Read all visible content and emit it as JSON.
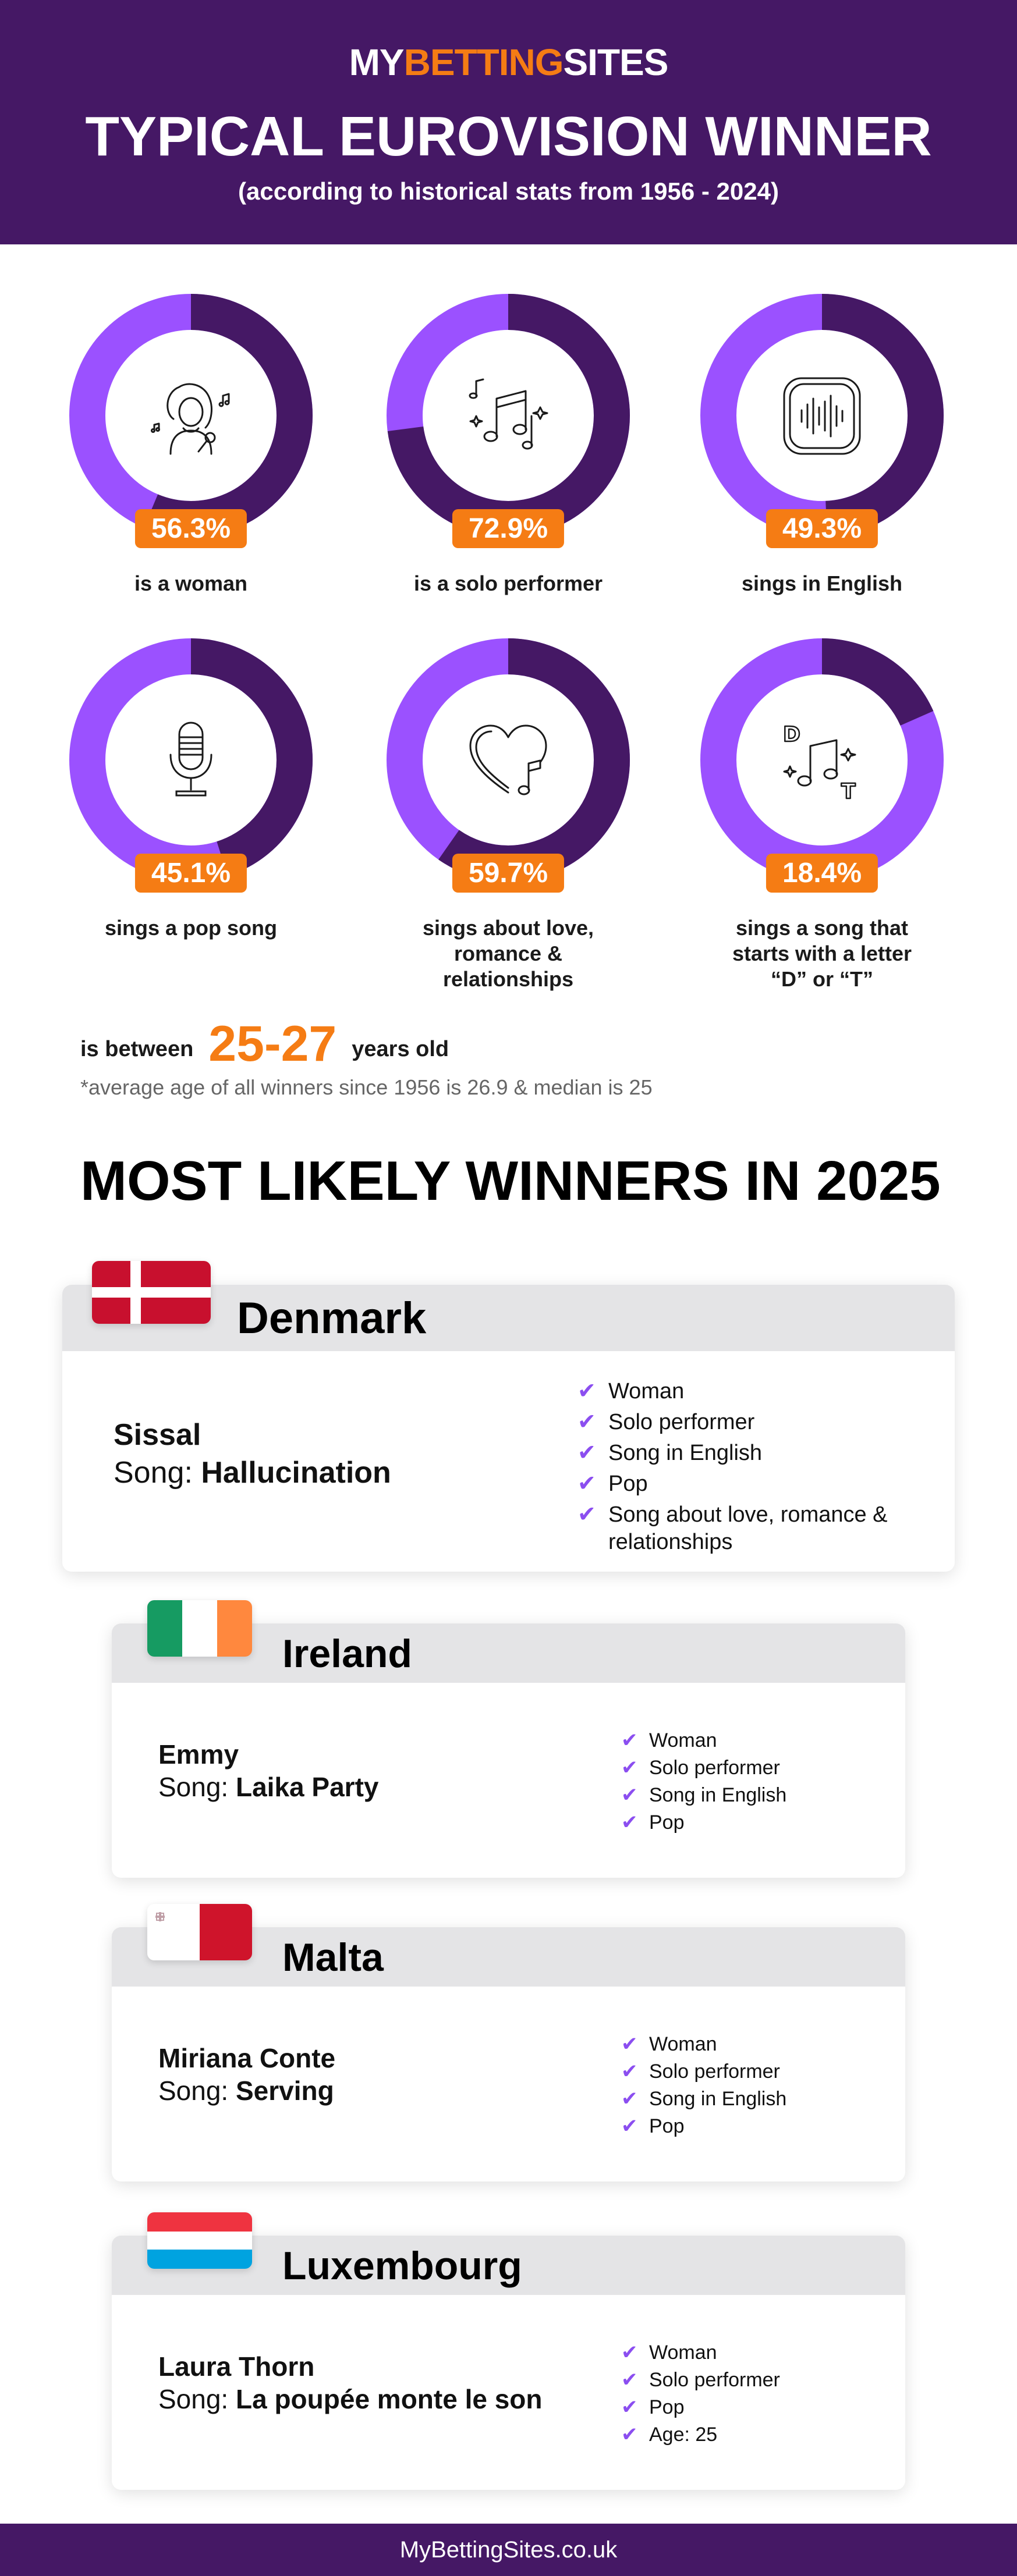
{
  "header": {
    "logo_part1": "MY",
    "logo_part2": "BETTING",
    "logo_part3": "SITES",
    "title": "TYPICAL EUROVISION WINNER",
    "subtitle": "(according to historical stats from 1956 - 2024)"
  },
  "colors": {
    "purple": "#451865",
    "light_purple": "#9b51ff",
    "orange": "#f57c14",
    "check": "#8b4ef0"
  },
  "stats": [
    {
      "value": 56.3,
      "pct_label": "56.3%",
      "label": "is a woman",
      "icon": "woman-singer-icon"
    },
    {
      "value": 72.9,
      "pct_label": "72.9%",
      "label": "is a solo performer",
      "icon": "music-notes-icon"
    },
    {
      "value": 49.3,
      "pct_label": "49.3%",
      "label": "sings in English",
      "icon": "sound-wave-icon"
    },
    {
      "value": 45.1,
      "pct_label": "45.1%",
      "label": "sings a pop song",
      "icon": "microphone-icon"
    },
    {
      "value": 59.7,
      "pct_label": "59.7%",
      "label": "sings about  love, romance & relationships",
      "icon": "heart-note-icon"
    },
    {
      "value": 18.4,
      "pct_label": "18.4%",
      "label": "sings a song that starts with a letter “D” or “T”",
      "icon": "letters-note-icon"
    }
  ],
  "age": {
    "prefix": "is between",
    "range": "25-27",
    "suffix": "years old",
    "note": "*average age of all winners since 1956 is 26.9 & median is 25"
  },
  "section_title": "MOST LIKELY WINNERS IN 2025",
  "winners": [
    {
      "country": "Denmark",
      "flag": "denmark-flag",
      "artist": "Sissal",
      "song_prefix": "Song: ",
      "song": "Hallucination",
      "traits": [
        "Woman",
        "Solo performer",
        "Song in English",
        "Pop",
        "Song about love, romance & relationships"
      ]
    },
    {
      "country": "Ireland",
      "flag": "ireland-flag",
      "artist": "Emmy",
      "song_prefix": "Song: ",
      "song": "Laika Party",
      "traits": [
        "Woman",
        "Solo performer",
        "Song in English",
        "Pop"
      ]
    },
    {
      "country": "Malta",
      "flag": "malta-flag",
      "artist": "Miriana Conte",
      "song_prefix": "Song: ",
      "song": "Serving",
      "traits": [
        "Woman",
        "Solo performer",
        "Song in English",
        "Pop"
      ]
    },
    {
      "country": "Luxembourg",
      "flag": "luxembourg-flag",
      "artist": "Laura Thorn",
      "song_prefix": "Song: ",
      "song": "La poupée monte le son",
      "traits": [
        "Woman",
        "Solo performer",
        "Pop",
        "Age: 25"
      ]
    }
  ],
  "footer": {
    "text": "MyBettingSites.co.uk"
  }
}
